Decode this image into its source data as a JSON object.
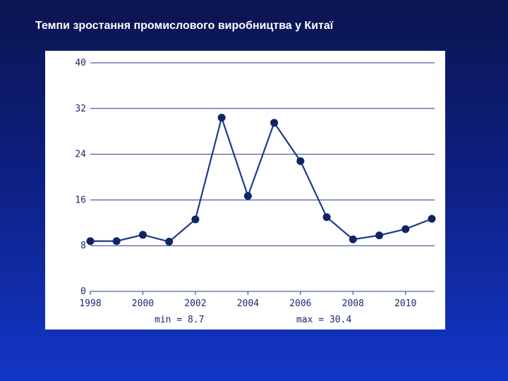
{
  "slide": {
    "title": "Темпи зростання промислового виробництва у Китаї"
  },
  "colors": {
    "line": "#1e3a8a",
    "marker": "#0f2566",
    "grid": "#1e3a8a",
    "text": "#1a2a6e"
  },
  "chart_data": {
    "type": "line",
    "title": "",
    "xlabel": "",
    "ylabel": "",
    "x": [
      1998,
      1999,
      2000,
      2001,
      2002,
      2003,
      2004,
      2005,
      2006,
      2007,
      2008,
      2009,
      2010,
      2011
    ],
    "series": [
      {
        "values": [
          8.8,
          8.8,
          9.9,
          8.7,
          12.6,
          30.4,
          16.7,
          29.5,
          22.8,
          13.0,
          9.1,
          9.8,
          10.9,
          12.7
        ]
      }
    ],
    "xlim": [
      1998,
      2011
    ],
    "ylim": [
      0,
      40
    ],
    "yticks": [
      "0",
      "8",
      "16",
      "24",
      "32",
      "40"
    ],
    "xticks": [
      "1998",
      "2000",
      "2002",
      "2004",
      "2006",
      "2008",
      "2010"
    ],
    "grid": true,
    "legend": "none",
    "annotations": {
      "min": "min = 8.7",
      "max": "max = 30.4"
    }
  }
}
